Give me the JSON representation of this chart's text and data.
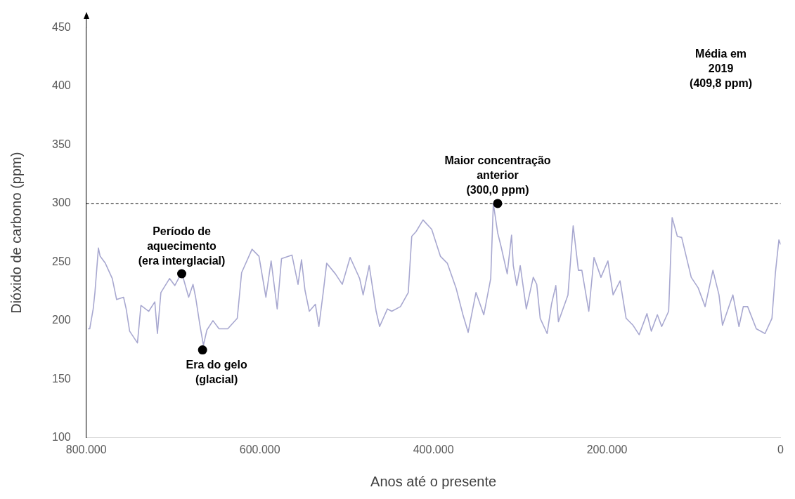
{
  "chart_data": {
    "type": "line",
    "xlabel": "Anos até o presente",
    "ylabel": "Dióxido de carbono (ppm)",
    "xlim": [
      800000,
      0
    ],
    "xticks": [
      {
        "value": 800000,
        "label": "800.000"
      },
      {
        "value": 600000,
        "label": "600.000"
      },
      {
        "value": 400000,
        "label": "400.000"
      },
      {
        "value": 200000,
        "label": "200.000"
      },
      0
    ],
    "ylim": [
      100,
      450
    ],
    "yticks": [
      100,
      150,
      200,
      250,
      300,
      350,
      400,
      450
    ],
    "grid": false,
    "legend": false,
    "marker": "none",
    "line_style": "solid",
    "series": [
      {
        "color": "#a8a8d0",
        "x": [
          798000,
          796000,
          792000,
          790000,
          786000,
          784000,
          778000,
          770000,
          765000,
          757000,
          754000,
          750000,
          741000,
          737000,
          728000,
          721000,
          718000,
          714000,
          704000,
          698000,
          690000,
          682000,
          677000,
          674000,
          669000,
          665000,
          661000,
          654000,
          647000,
          637000,
          626000,
          621000,
          609000,
          601000,
          593000,
          587000,
          580000,
          575000,
          563000,
          556000,
          552000,
          548000,
          543000,
          536000,
          532000,
          527000,
          523000,
          513000,
          505000,
          496000,
          485000,
          481000,
          474000,
          466000,
          462000,
          453000,
          448000,
          438000,
          429000,
          425000,
          420000,
          412000,
          402000,
          392000,
          384000,
          374000,
          366000,
          360000,
          351000,
          342000,
          334000,
          331000,
          326000,
          322000,
          315000,
          310000,
          308000,
          304000,
          300000,
          293000,
          285000,
          281000,
          277000,
          269000,
          264000,
          259000,
          256000,
          245000,
          239000,
          233000,
          229000,
          221000,
          215000,
          207000,
          199000,
          193000,
          185000,
          178000,
          170000,
          163000,
          154000,
          149000,
          142000,
          137000,
          129000,
          125000,
          119000,
          114000,
          103000,
          95000,
          87000,
          78000,
          71000,
          67000,
          55000,
          48000,
          43000,
          38000,
          28000,
          18000,
          10000,
          6000,
          2000,
          0
        ],
        "values": [
          193,
          193,
          210,
          224,
          262,
          255,
          249,
          236,
          218,
          220,
          210,
          191,
          181,
          213,
          208,
          216,
          189,
          224,
          236,
          230,
          241,
          220,
          231,
          220,
          196,
          179,
          192,
          200,
          193,
          193,
          202,
          241,
          261,
          255,
          220,
          251,
          210,
          253,
          256,
          231,
          252,
          226,
          208,
          214,
          195,
          224,
          249,
          240,
          231,
          254,
          236,
          222,
          247,
          208,
          195,
          210,
          208,
          212,
          224,
          272,
          276,
          286,
          278,
          255,
          249,
          228,
          205,
          190,
          224,
          205,
          236,
          300,
          275,
          263,
          240,
          273,
          247,
          230,
          247,
          210,
          237,
          231,
          202,
          189,
          214,
          230,
          199,
          222,
          281,
          243,
          243,
          208,
          254,
          237,
          251,
          222,
          234,
          202,
          196,
          188,
          206,
          191,
          205,
          195,
          208,
          288,
          272,
          271,
          237,
          228,
          212,
          243,
          222,
          196,
          222,
          195,
          212,
          212,
          193,
          189,
          202,
          241,
          269,
          265
        ]
      }
    ],
    "ref_lines": [
      {
        "axis": "y",
        "value": 300,
        "color": "#000000",
        "line_style": "dashed"
      }
    ],
    "annotations": [
      {
        "text": "Período de\naquecimento\n(era interglacial)",
        "x": 690000,
        "y": 240
      },
      {
        "text": "Era do gelo\n(glacial)",
        "x": 666000,
        "y": 175
      },
      {
        "text": "Maior concentração\nanterior\n(300,0 ppm)",
        "x": 326000,
        "y": 300
      },
      "Média em\n2019\n(409,8 ppm)"
    ]
  }
}
